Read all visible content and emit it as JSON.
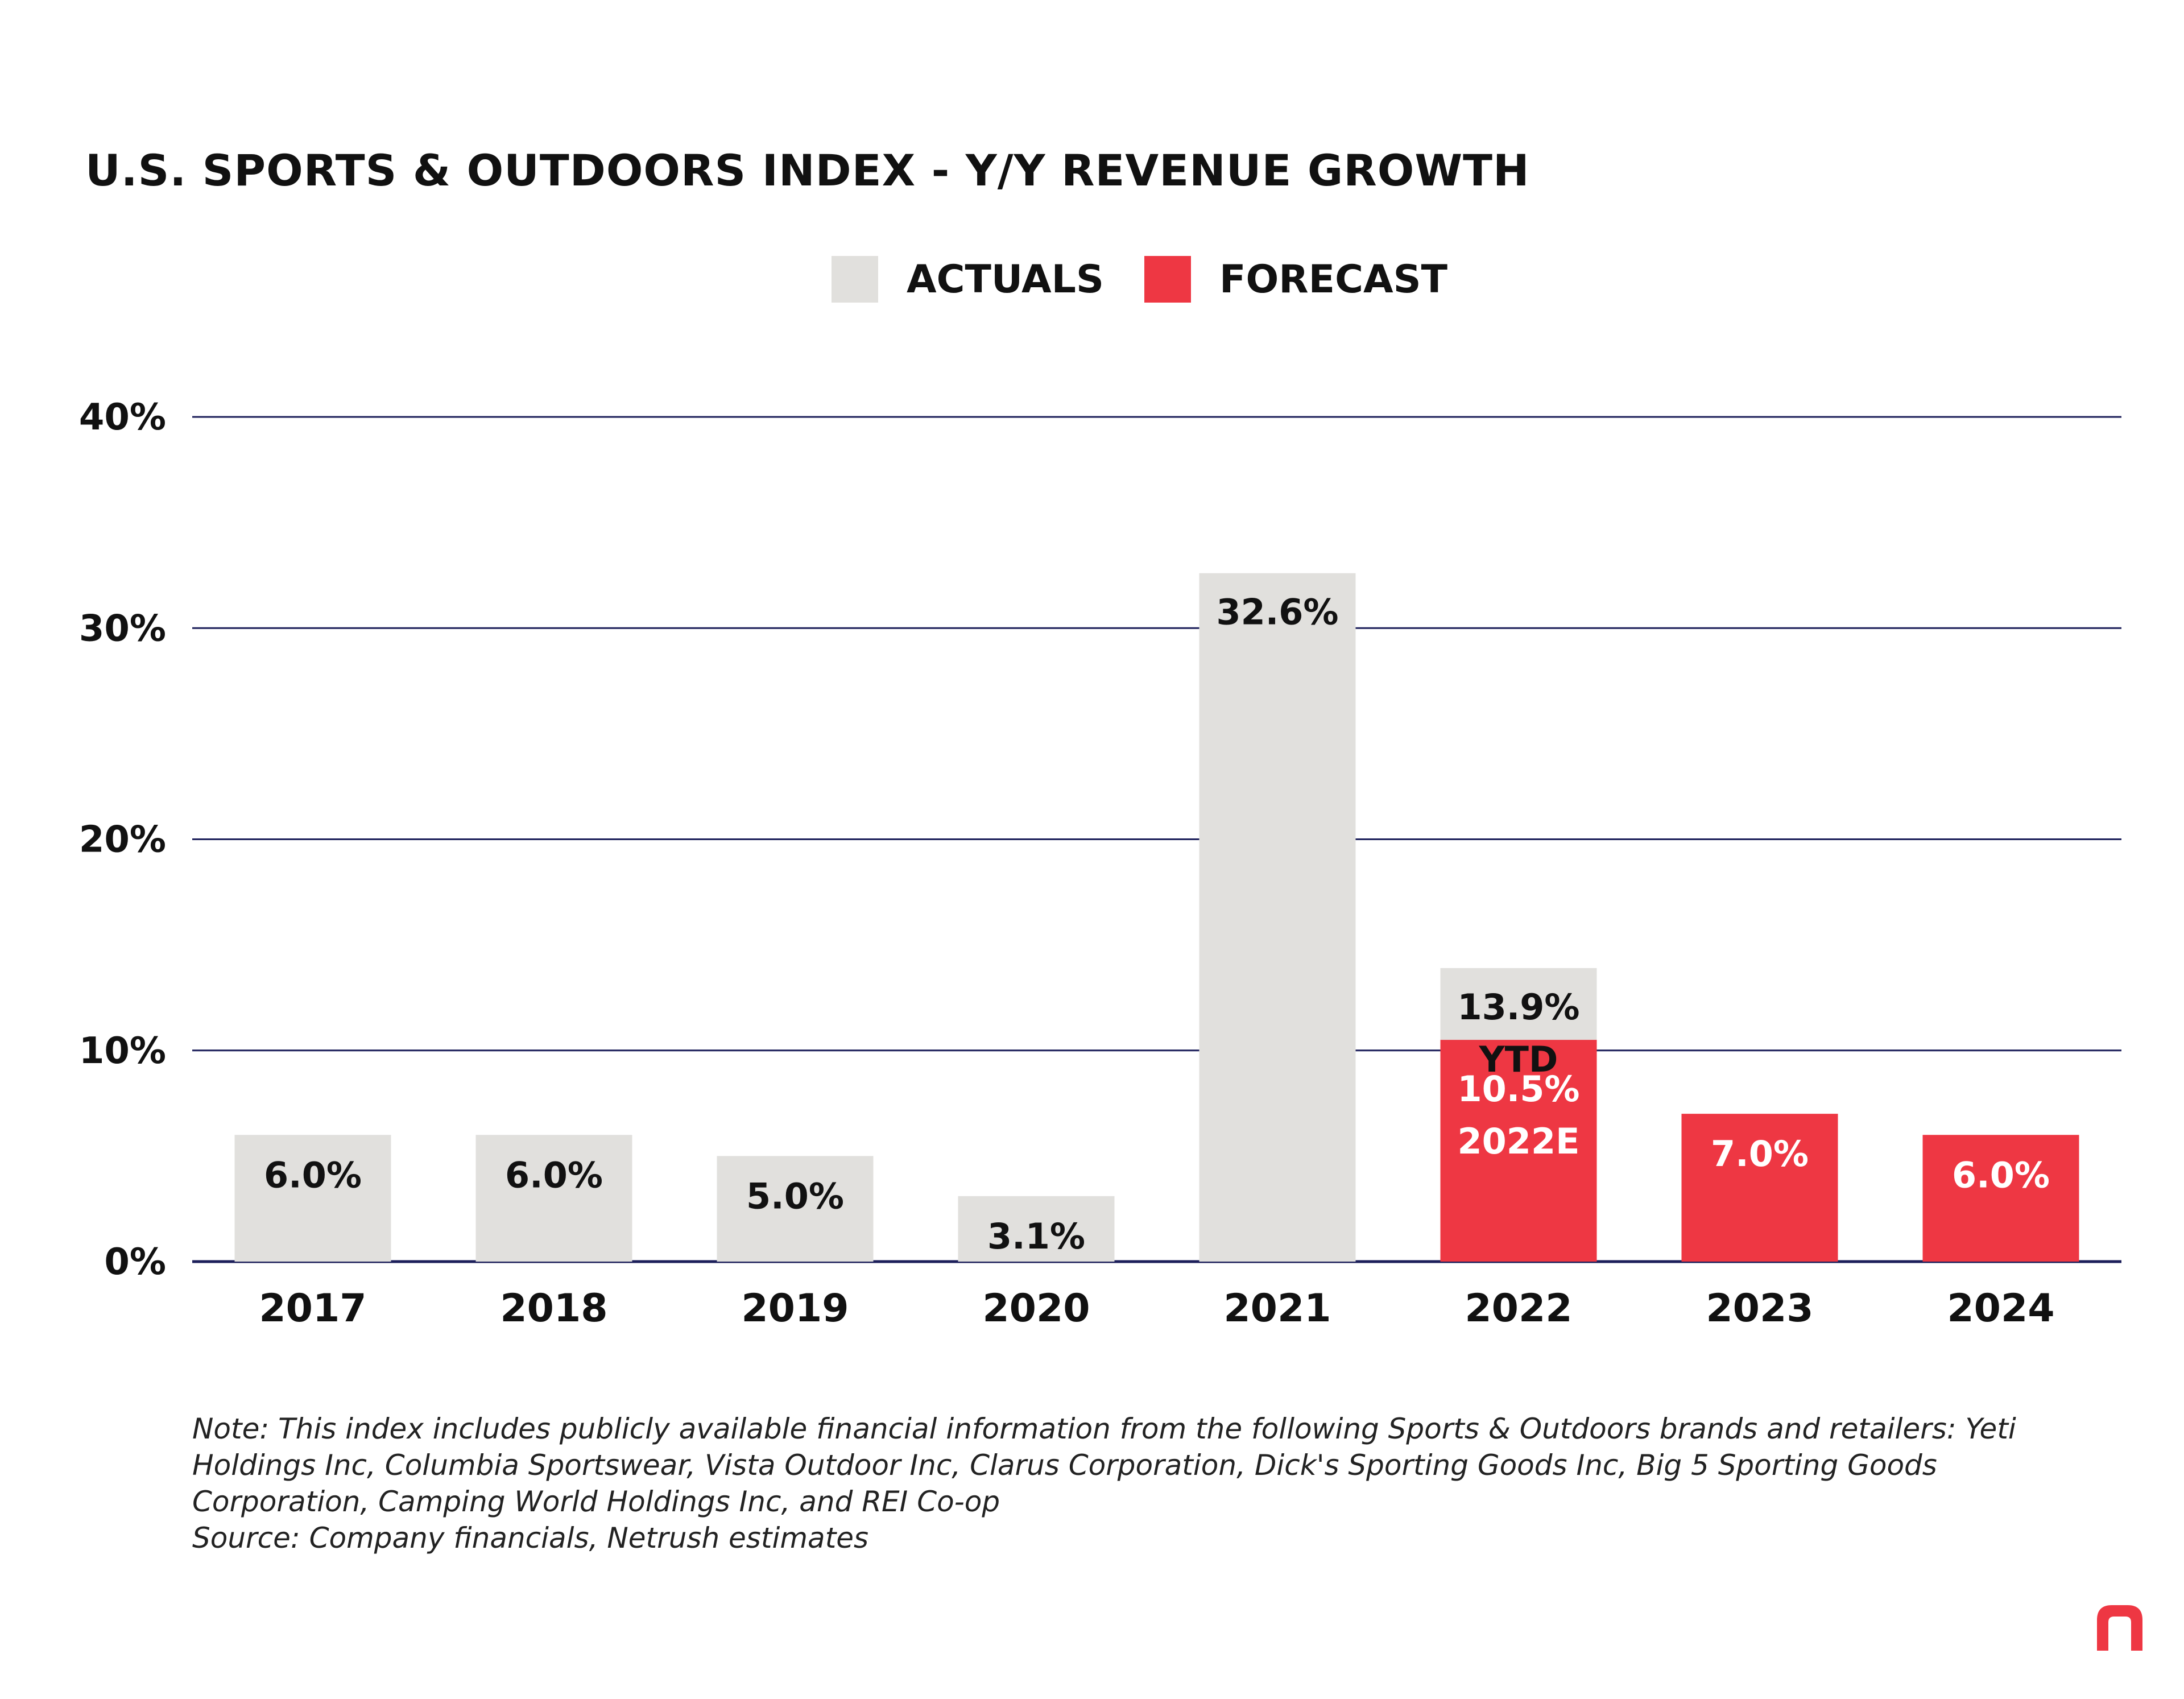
{
  "title": "U.S. SPORTS & OUTDOORS INDEX - Y/Y REVENUE GROWTH",
  "legend": {
    "actuals": {
      "label": "ACTUALS",
      "color": "#e1e0dd"
    },
    "forecast": {
      "label": "FORECAST",
      "color": "#ee3743"
    }
  },
  "chart_data": {
    "type": "bar",
    "title": "U.S. SPORTS & OUTDOORS INDEX - Y/Y REVENUE GROWTH",
    "categories": [
      "2017",
      "2018",
      "2019",
      "2020",
      "2021",
      "2022",
      "2023",
      "2024"
    ],
    "yticks": [
      "0%",
      "10%",
      "20%",
      "30%",
      "40%"
    ],
    "ylim": [
      0,
      40
    ],
    "grid": true,
    "legend_position": "top-center",
    "series": [
      {
        "name": "ACTUALS",
        "color": "#e1e0dd",
        "values": [
          6.0,
          6.0,
          5.0,
          3.1,
          32.6,
          13.9,
          null,
          null
        ],
        "labels": [
          "6.0%",
          "6.0%",
          "5.0%",
          "3.1%",
          "32.6%",
          "13.9%\nYTD",
          "",
          ""
        ]
      },
      {
        "name": "FORECAST",
        "color": "#ee3743",
        "values": [
          null,
          null,
          null,
          null,
          null,
          10.5,
          7.0,
          6.0
        ],
        "labels": [
          "",
          "",
          "",
          "",
          "",
          "10.5%\n2022E",
          "7.0%",
          "6.0%"
        ]
      }
    ]
  },
  "note": {
    "text": "Note: This index includes publicly available financial information from the following Sports & Outdoors brands and retailers: Yeti Holdings Inc, Columbia Sportswear, Vista Outdoor Inc, Clarus Corporation, Dick's Sporting Goods Inc, Big 5 Sporting Goods Corporation, Camping World Holdings Inc, and REI Co-op",
    "source": "Source: Company financials, Netrush estimates"
  },
  "logo": {
    "icon": "netrush-logo-icon",
    "color": "#ee3743"
  }
}
